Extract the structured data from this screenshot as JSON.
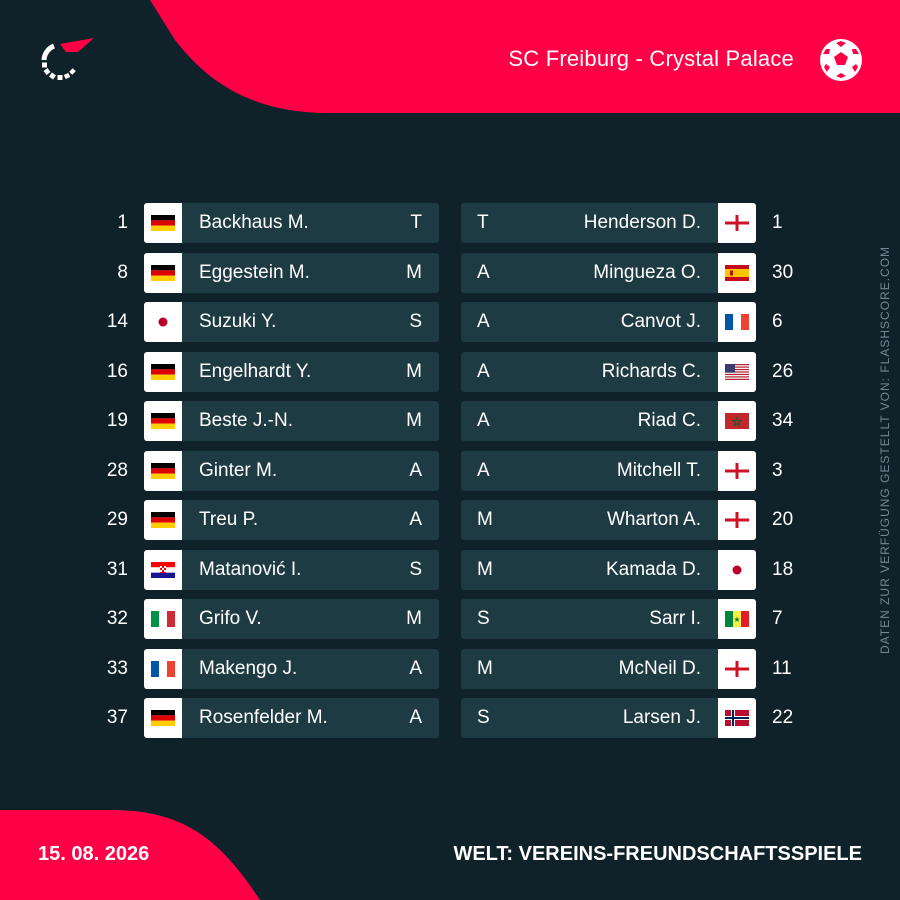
{
  "brand": {
    "accent": "#ff0046",
    "background": "#0f222a",
    "bar": "#1e3a42"
  },
  "header": {
    "match_title": "SC Freiburg - Crystal Palace",
    "logo_icon": "flashscore-logo-icon",
    "ball_icon": "football-icon"
  },
  "home": [
    {
      "number": "1",
      "flag": "germany",
      "name": "Backhaus M.",
      "position": "T"
    },
    {
      "number": "8",
      "flag": "germany",
      "name": "Eggestein M.",
      "position": "M"
    },
    {
      "number": "14",
      "flag": "japan",
      "name": "Suzuki Y.",
      "position": "S"
    },
    {
      "number": "16",
      "flag": "germany",
      "name": "Engelhardt Y.",
      "position": "M"
    },
    {
      "number": "19",
      "flag": "germany",
      "name": "Beste J.-N.",
      "position": "M"
    },
    {
      "number": "28",
      "flag": "germany",
      "name": "Ginter M.",
      "position": "A"
    },
    {
      "number": "29",
      "flag": "germany",
      "name": "Treu P.",
      "position": "A"
    },
    {
      "number": "31",
      "flag": "croatia",
      "name": "Matanović I.",
      "position": "S"
    },
    {
      "number": "32",
      "flag": "italy",
      "name": "Grifo V.",
      "position": "M"
    },
    {
      "number": "33",
      "flag": "france",
      "name": "Makengo J.",
      "position": "A"
    },
    {
      "number": "37",
      "flag": "germany",
      "name": "Rosenfelder M.",
      "position": "A"
    }
  ],
  "away": [
    {
      "number": "1",
      "flag": "england",
      "name": "Henderson D.",
      "position": "T"
    },
    {
      "number": "30",
      "flag": "spain",
      "name": "Mingueza O.",
      "position": "A"
    },
    {
      "number": "6",
      "flag": "france",
      "name": "Canvot J.",
      "position": "A"
    },
    {
      "number": "26",
      "flag": "usa",
      "name": "Richards C.",
      "position": "A"
    },
    {
      "number": "34",
      "flag": "morocco",
      "name": "Riad C.",
      "position": "A"
    },
    {
      "number": "3",
      "flag": "england",
      "name": "Mitchell T.",
      "position": "A"
    },
    {
      "number": "20",
      "flag": "england",
      "name": "Wharton A.",
      "position": "M"
    },
    {
      "number": "18",
      "flag": "japan",
      "name": "Kamada D.",
      "position": "M"
    },
    {
      "number": "7",
      "flag": "senegal",
      "name": "Sarr I.",
      "position": "S"
    },
    {
      "number": "11",
      "flag": "england",
      "name": "McNeil D.",
      "position": "M"
    },
    {
      "number": "22",
      "flag": "norway",
      "name": "Larsen J.",
      "position": "S"
    }
  ],
  "side_credit": "DATEN ZUR VERFÜGUNG GESTELLT VON: FLASHSCORE.COM",
  "footer": {
    "date": "15. 08. 2026",
    "competition": "WELT: VEREINS-FREUNDSCHAFTSSPIELE"
  }
}
